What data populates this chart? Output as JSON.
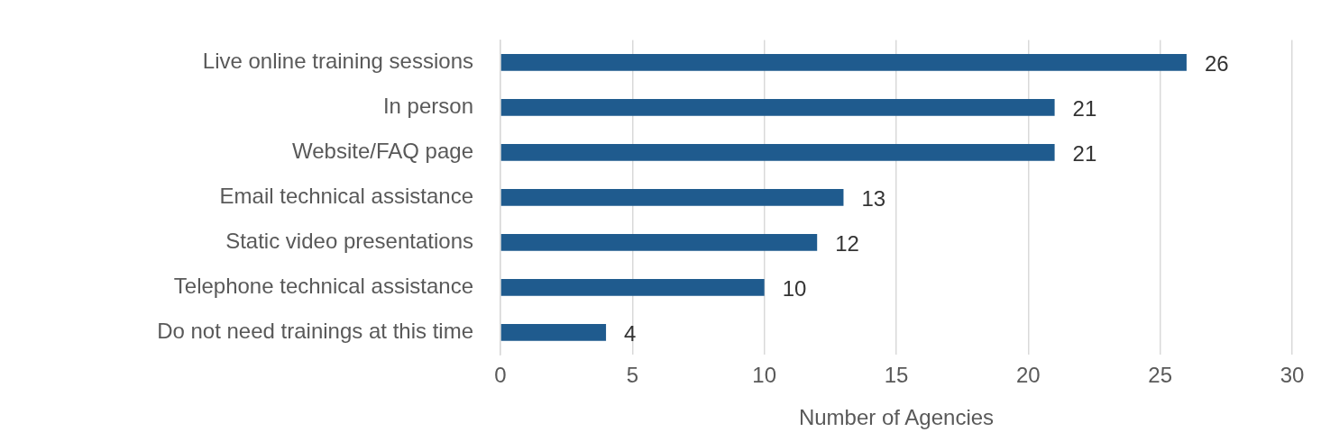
{
  "chart_data": {
    "type": "bar",
    "orientation": "horizontal",
    "xlabel": "Number of Agencies",
    "categories": [
      "Live online training sessions",
      "In person",
      "Website/FAQ page",
      "Email technical assistance",
      "Static video presentations",
      "Telephone technical assistance",
      "Do not need trainings at this time"
    ],
    "values": [
      26,
      21,
      21,
      13,
      12,
      10,
      4
    ],
    "color": "#1f5b8e",
    "xlim": [
      0,
      30
    ],
    "xticks": [
      0,
      5,
      10,
      15,
      20,
      25,
      30
    ],
    "grid": "x",
    "data_labels": true,
    "legend": false
  }
}
